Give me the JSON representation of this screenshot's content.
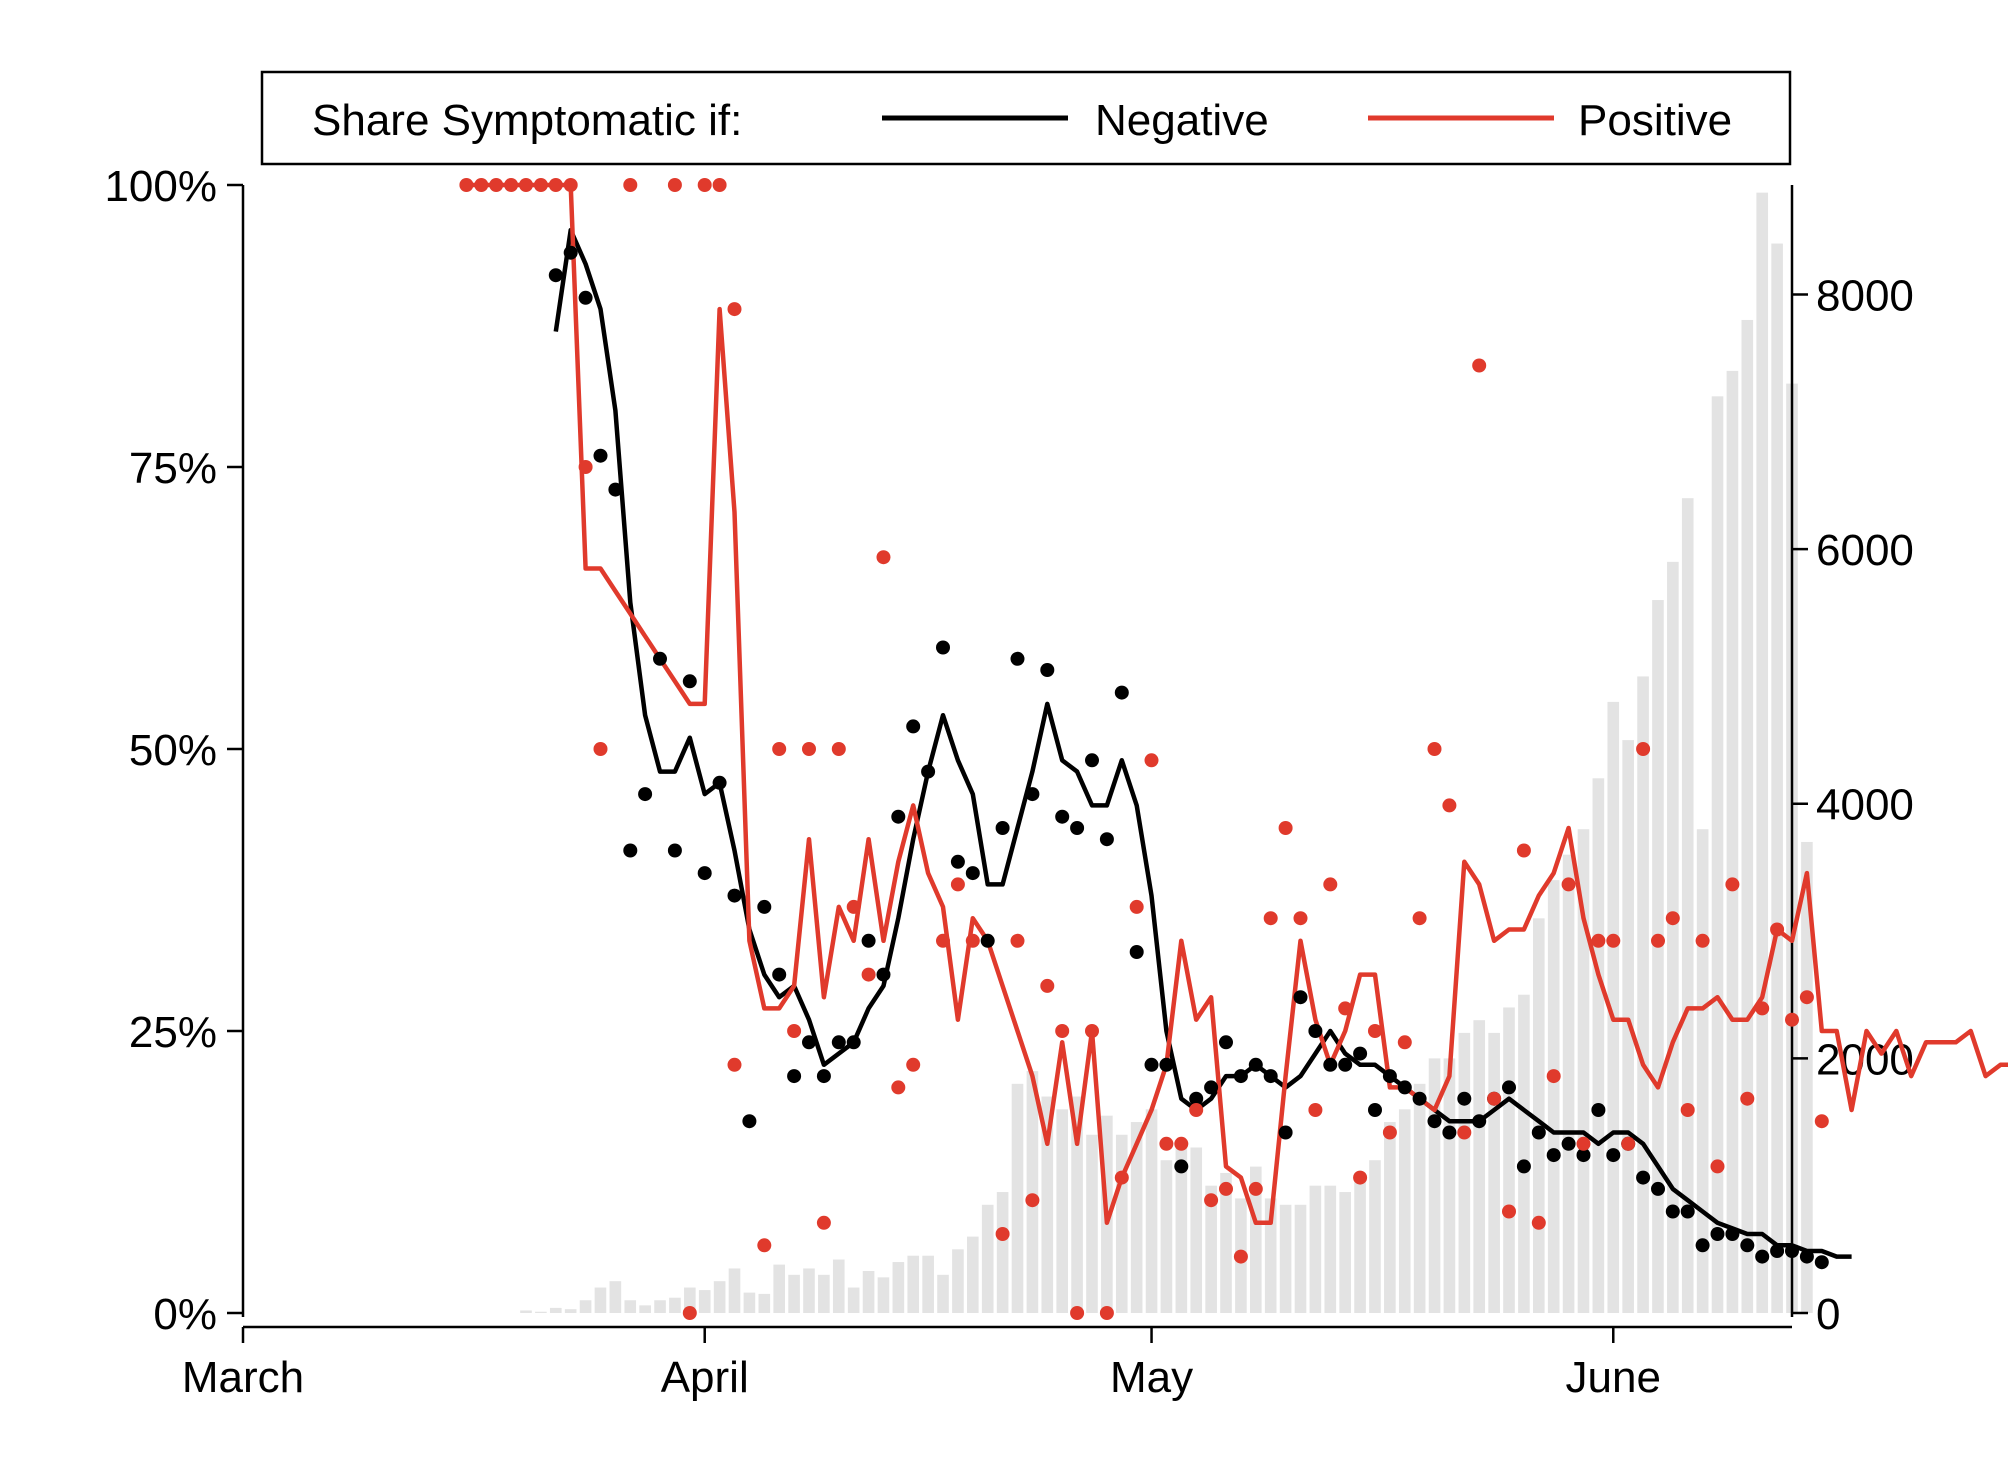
{
  "chart_data": {
    "type": "line",
    "x_unit": "day of year 2020",
    "legend": {
      "title": "Share Symptomatic if:",
      "placement": "top",
      "entries": [
        {
          "label": "Negative",
          "color": "#000000"
        },
        {
          "label": "Positive",
          "color": "#e03a2c"
        }
      ]
    },
    "x_ticks": [
      {
        "x": 61,
        "label": "March"
      },
      {
        "x": 92,
        "label": "April"
      },
      {
        "x": 122,
        "label": "May"
      },
      {
        "x": 153,
        "label": "June"
      }
    ],
    "x_range": [
      61,
      165
    ],
    "y_left": {
      "range": [
        0,
        1
      ],
      "ticks": [
        {
          "v": 0,
          "label": "0%"
        },
        {
          "v": 0.25,
          "label": "25%"
        },
        {
          "v": 0.5,
          "label": "50%"
        },
        {
          "v": 0.75,
          "label": "75%"
        },
        {
          "v": 1,
          "label": "100%"
        }
      ]
    },
    "y_right": {
      "range": [
        0,
        8860
      ],
      "ticks": [
        {
          "v": 0,
          "label": "0"
        },
        {
          "v": 2000,
          "label": "2000"
        },
        {
          "v": 4000,
          "label": "4000"
        },
        {
          "v": 6000,
          "label": "6000"
        },
        {
          "v": 8000,
          "label": "8000"
        }
      ]
    },
    "grid": false,
    "colors": {
      "negative": "#000000",
      "positive": "#e03a2c",
      "bars": "#e3e3e3"
    },
    "bars": {
      "axis": "right",
      "x_start": 80,
      "values": [
        20,
        10,
        40,
        30,
        100,
        200,
        250,
        100,
        60,
        100,
        120,
        200,
        180,
        250,
        350,
        160,
        150,
        380,
        300,
        350,
        300,
        420,
        200,
        330,
        280,
        400,
        450,
        450,
        300,
        500,
        600,
        850,
        950,
        1800,
        1900,
        1700,
        1600,
        1700,
        1400,
        1550,
        1400,
        1500,
        1600,
        1200,
        1300,
        1300,
        1000,
        1100,
        900,
        1150,
        900,
        850,
        850,
        1000,
        1000,
        950,
        1100,
        1200,
        1500,
        1600,
        1800,
        2000,
        2000,
        2200,
        2300,
        2200,
        2400,
        2500,
        3100,
        3400,
        3600,
        3800,
        4200,
        4800,
        4500,
        5000,
        5600,
        5900,
        6400,
        3800,
        7200,
        7400,
        7800,
        8800,
        8400,
        7300,
        3700
      ]
    },
    "series": [
      {
        "name": "Negative",
        "kind": "line",
        "axis": "left",
        "x_start": 82,
        "values": [
          0.87,
          0.96,
          0.93,
          0.89,
          0.8,
          0.63,
          0.53,
          0.48,
          0.48,
          0.51,
          0.46,
          0.47,
          0.41,
          0.34,
          0.3,
          0.28,
          0.29,
          0.26,
          0.22,
          0.23,
          0.24,
          0.27,
          0.29,
          0.35,
          0.42,
          0.48,
          0.53,
          0.49,
          0.46,
          0.38,
          0.38,
          0.43,
          0.48,
          0.54,
          0.49,
          0.48,
          0.45,
          0.45,
          0.49,
          0.45,
          0.37,
          0.25,
          0.19,
          0.18,
          0.19,
          0.21,
          0.21,
          0.22,
          0.21,
          0.2,
          0.21,
          0.23,
          0.25,
          0.23,
          0.22,
          0.22,
          0.21,
          0.2,
          0.19,
          0.18,
          0.17,
          0.17,
          0.17,
          0.18,
          0.19,
          0.18,
          0.17,
          0.16,
          0.16,
          0.16,
          0.15,
          0.16,
          0.16,
          0.15,
          0.13,
          0.11,
          0.1,
          0.09,
          0.08,
          0.075,
          0.07,
          0.07,
          0.06,
          0.06,
          0.055,
          0.055,
          0.05,
          0.05
        ]
      },
      {
        "name": "Negative",
        "kind": "dots",
        "axis": "left",
        "x_start": 82,
        "values": [
          0.92,
          0.94,
          0.9,
          0.76,
          0.73,
          0.41,
          0.46,
          0.58,
          0.41,
          0.56,
          0.39,
          0.47,
          0.37,
          0.17,
          0.36,
          0.3,
          0.21,
          0.24,
          0.21,
          0.24,
          0.24,
          0.33,
          0.3,
          0.44,
          0.52,
          0.48,
          0.59,
          0.4,
          0.39,
          0.33,
          0.43,
          0.58,
          0.46,
          0.57,
          0.44,
          0.43,
          0.49,
          0.42,
          0.55,
          0.32,
          0.22,
          0.22,
          0.13,
          0.19,
          0.2,
          0.24,
          0.21,
          0.22,
          0.21,
          0.16,
          0.28,
          0.25,
          0.22,
          0.22,
          0.23,
          0.18,
          0.21,
          0.2,
          0.19,
          0.17,
          0.16,
          0.19,
          0.17,
          0.19,
          0.2,
          0.13,
          0.16,
          0.14,
          0.15,
          0.14,
          0.18,
          0.14,
          0.15,
          0.12,
          0.11,
          0.09,
          0.09,
          0.06,
          0.07,
          0.07,
          0.06,
          0.05,
          0.055,
          0.055,
          0.05,
          0.045
        ]
      },
      {
        "name": "Positive",
        "kind": "line",
        "axis": "left",
        "x_start": 76,
        "values": [
          1,
          1,
          1,
          1,
          1,
          1,
          1,
          1,
          0.66,
          0.66,
          0.64,
          0.62,
          0.6,
          0.58,
          0.56,
          0.54,
          0.54,
          0.89,
          0.71,
          0.33,
          0.27,
          0.27,
          0.29,
          0.42,
          0.28,
          0.36,
          0.33,
          0.42,
          0.33,
          0.4,
          0.45,
          0.39,
          0.36,
          0.26,
          0.35,
          0.33,
          0.29,
          0.25,
          0.21,
          0.15,
          0.24,
          0.15,
          0.25,
          0.08,
          0.12,
          0.15,
          0.18,
          0.22,
          0.33,
          0.26,
          0.28,
          0.13,
          0.12,
          0.08,
          0.08,
          0.21,
          0.33,
          0.26,
          0.22,
          0.25,
          0.3,
          0.3,
          0.2,
          0.2,
          0.19,
          0.18,
          0.21,
          0.4,
          0.38,
          0.33,
          0.34,
          0.34,
          0.37,
          0.39,
          0.43,
          0.35,
          0.3,
          0.26,
          0.26,
          0.22,
          0.2,
          0.24,
          0.27,
          0.27,
          0.28,
          0.26,
          0.26,
          0.28,
          0.34,
          0.33,
          0.39,
          0.25,
          0.25,
          0.18,
          0.25,
          0.23,
          0.25,
          0.21,
          0.24,
          0.24,
          0.24,
          0.25,
          0.21,
          0.22,
          0.22
        ]
      },
      {
        "name": "Positive",
        "kind": "dots",
        "axis": "left",
        "points": [
          [
            76,
            1
          ],
          [
            77,
            1
          ],
          [
            78,
            1
          ],
          [
            79,
            1
          ],
          [
            80,
            1
          ],
          [
            81,
            1
          ],
          [
            82,
            1
          ],
          [
            83,
            1
          ],
          [
            84,
            0.75
          ],
          [
            85,
            0.5
          ],
          [
            87,
            1
          ],
          [
            90,
            1
          ],
          [
            91,
            0
          ],
          [
            92,
            1
          ],
          [
            93,
            1
          ],
          [
            94,
            0.89
          ],
          [
            94,
            0.22
          ],
          [
            96,
            0.06
          ],
          [
            97,
            0.5
          ],
          [
            98,
            0.25
          ],
          [
            99,
            0.5
          ],
          [
            100,
            0.08
          ],
          [
            101,
            0.5
          ],
          [
            102,
            0.36
          ],
          [
            103,
            0.3
          ],
          [
            104,
            0.67
          ],
          [
            105,
            0.2
          ],
          [
            106,
            0.22
          ],
          [
            108,
            0.33
          ],
          [
            109,
            0.38
          ],
          [
            110,
            0.33
          ],
          [
            112,
            0.07
          ],
          [
            113,
            0.33
          ],
          [
            114,
            0.1
          ],
          [
            115,
            0.29
          ],
          [
            116,
            0.25
          ],
          [
            117,
            0
          ],
          [
            118,
            0.25
          ],
          [
            119,
            0
          ],
          [
            120,
            0.12
          ],
          [
            121,
            0.36
          ],
          [
            122,
            0.49
          ],
          [
            123,
            0.15
          ],
          [
            124,
            0.15
          ],
          [
            125,
            0.18
          ],
          [
            126,
            0.1
          ],
          [
            127,
            0.11
          ],
          [
            128,
            0.05
          ],
          [
            129,
            0.11
          ],
          [
            130,
            0.35
          ],
          [
            131,
            0.43
          ],
          [
            132,
            0.35
          ],
          [
            133,
            0.18
          ],
          [
            134,
            0.38
          ],
          [
            135,
            0.27
          ],
          [
            136,
            0.12
          ],
          [
            137,
            0.25
          ],
          [
            138,
            0.16
          ],
          [
            139,
            0.24
          ],
          [
            140,
            0.35
          ],
          [
            141,
            0.5
          ],
          [
            142,
            0.45
          ],
          [
            143,
            0.16
          ],
          [
            144,
            0.84
          ],
          [
            145,
            0.19
          ],
          [
            146,
            0.09
          ],
          [
            147,
            0.41
          ],
          [
            148,
            0.08
          ],
          [
            149,
            0.21
          ],
          [
            150,
            0.38
          ],
          [
            151,
            0.15
          ],
          [
            152,
            0.33
          ],
          [
            153,
            0.33
          ],
          [
            154,
            0.15
          ],
          [
            155,
            0.5
          ],
          [
            156,
            0.33
          ],
          [
            157,
            0.35
          ],
          [
            158,
            0.18
          ],
          [
            159,
            0.33
          ],
          [
            160,
            0.13
          ],
          [
            161,
            0.38
          ],
          [
            162,
            0.19
          ],
          [
            163,
            0.27
          ],
          [
            164,
            0.34
          ],
          [
            165,
            0.26
          ],
          [
            166,
            0.28
          ],
          [
            167,
            0.17
          ]
        ]
      }
    ]
  }
}
